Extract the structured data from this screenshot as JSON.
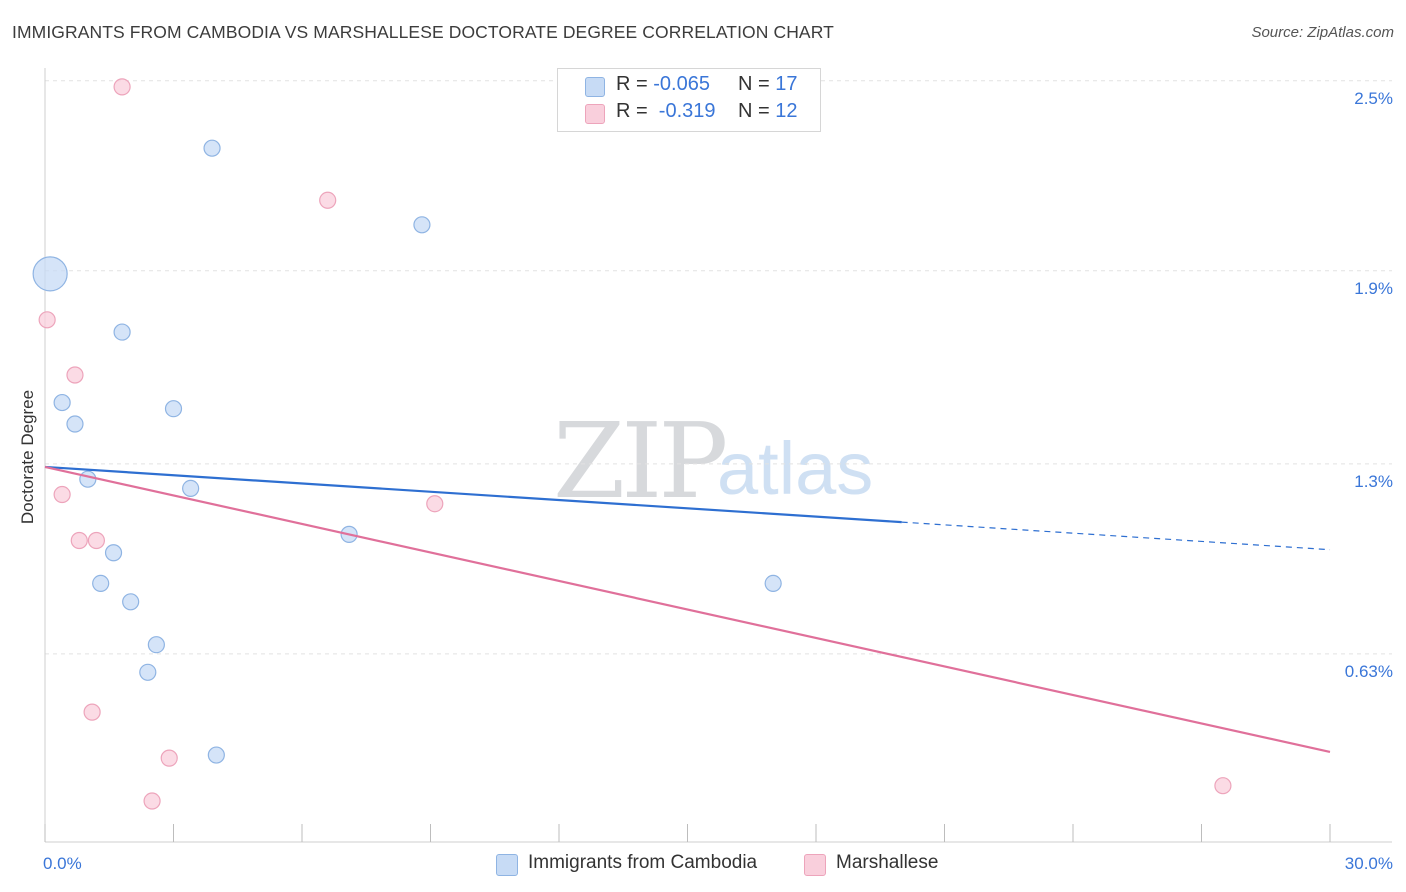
{
  "header": {
    "title": "IMMIGRANTS FROM CAMBODIA VS MARSHALLESE DOCTORATE DEGREE CORRELATION CHART",
    "source": "Source: ZipAtlas.com"
  },
  "watermark": {
    "zip": "ZIP",
    "atlas": "atlas"
  },
  "legend": {
    "series1": {
      "r_label": "R = ",
      "r_value": "-0.065",
      "n_label": "N = ",
      "n_value": "17"
    },
    "series2": {
      "r_label": "R = ",
      "r_value": " -0.319",
      "n_label": "N = ",
      "n_value": "12"
    }
  },
  "bottom_legend": {
    "series1": "Immigrants from Cambodia",
    "series2": "Marshallese"
  },
  "colors": {
    "blue_fill": "#c7dbf5",
    "blue_stroke": "#8fb4e3",
    "blue_line": "#2e6fd1",
    "pink_fill": "#f9cfdc",
    "pink_stroke": "#eda4bb",
    "pink_line": "#e0709a",
    "tick_text": "#3a76d8",
    "grid": "#e2e2e2"
  },
  "chart_data": {
    "type": "scatter",
    "title": "IMMIGRANTS FROM CAMBODIA VS MARSHALLESE DOCTORATE DEGREE CORRELATION CHART",
    "xlabel": "",
    "ylabel": "Doctorate Degree",
    "xlim": [
      0,
      30
    ],
    "ylim": [
      0.0,
      2.55
    ],
    "x_tick_labels": [
      "0.0%",
      "30.0%"
    ],
    "y_ticks": [
      {
        "value": 0.63,
        "label": "0.63%"
      },
      {
        "value": 1.25,
        "label": "1.3%"
      },
      {
        "value": 1.88,
        "label": "1.9%"
      },
      {
        "value": 2.5,
        "label": "2.5%"
      }
    ],
    "grid": true,
    "series": [
      {
        "name": "Immigrants from Cambodia",
        "r": -0.065,
        "n": 17,
        "points": [
          {
            "x": 0.12,
            "y": 1.87,
            "size": "large"
          },
          {
            "x": 3.9,
            "y": 2.28
          },
          {
            "x": 8.8,
            "y": 2.03
          },
          {
            "x": 1.8,
            "y": 1.68
          },
          {
            "x": 0.4,
            "y": 1.45
          },
          {
            "x": 3.0,
            "y": 1.43
          },
          {
            "x": 0.7,
            "y": 1.38
          },
          {
            "x": 1.0,
            "y": 1.2
          },
          {
            "x": 3.4,
            "y": 1.17
          },
          {
            "x": 7.1,
            "y": 1.02
          },
          {
            "x": 1.6,
            "y": 0.96
          },
          {
            "x": 1.3,
            "y": 0.86
          },
          {
            "x": 2.0,
            "y": 0.8
          },
          {
            "x": 2.6,
            "y": 0.66
          },
          {
            "x": 17.0,
            "y": 0.86
          },
          {
            "x": 2.4,
            "y": 0.57
          },
          {
            "x": 4.0,
            "y": 0.3
          }
        ],
        "trend": {
          "x_start": 0,
          "y_start": 1.24,
          "x_solid_end": 20.0,
          "x_end": 30,
          "y_end": 0.97
        }
      },
      {
        "name": "Marshallese",
        "r": -0.319,
        "n": 12,
        "points": [
          {
            "x": 1.8,
            "y": 2.48
          },
          {
            "x": 6.6,
            "y": 2.11
          },
          {
            "x": 0.05,
            "y": 1.72
          },
          {
            "x": 0.7,
            "y": 1.54
          },
          {
            "x": 0.4,
            "y": 1.15
          },
          {
            "x": 9.1,
            "y": 1.12
          },
          {
            "x": 0.8,
            "y": 1.0
          },
          {
            "x": 1.2,
            "y": 1.0
          },
          {
            "x": 1.1,
            "y": 0.44
          },
          {
            "x": 2.9,
            "y": 0.29
          },
          {
            "x": 2.5,
            "y": 0.15
          },
          {
            "x": 27.5,
            "y": 0.2
          }
        ],
        "trend": {
          "x_start": 0,
          "y_start": 1.24,
          "x_end": 30,
          "y_end": 0.31
        }
      }
    ]
  }
}
